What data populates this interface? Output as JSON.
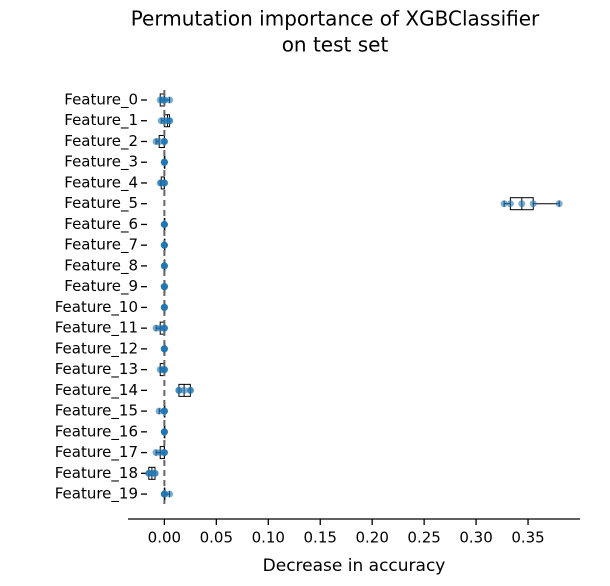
{
  "chart_data": {
    "type": "boxplot",
    "orientation": "horizontal",
    "title": [
      "Permutation importance of XGBClassifier",
      "on test set"
    ],
    "xlabel": "Decrease in accuracy",
    "categories": [
      "Feature_0",
      "Feature_1",
      "Feature_2",
      "Feature_3",
      "Feature_4",
      "Feature_5",
      "Feature_6",
      "Feature_7",
      "Feature_8",
      "Feature_9",
      "Feature_10",
      "Feature_11",
      "Feature_12",
      "Feature_13",
      "Feature_14",
      "Feature_15",
      "Feature_16",
      "Feature_17",
      "Feature_18",
      "Feature_19"
    ],
    "boxes": [
      {
        "whislo": -0.004,
        "q1": -0.004,
        "median": 0,
        "q3": 0,
        "whishi": 0.005
      },
      {
        "whislo": -0.003,
        "q1": 0,
        "median": 0.003,
        "q3": 0.005,
        "whishi": 0.005
      },
      {
        "whislo": -0.008,
        "q1": -0.005,
        "median": 0,
        "q3": 0,
        "whishi": 0
      },
      {
        "whislo": 0,
        "q1": 0,
        "median": 0,
        "q3": 0,
        "whishi": 0
      },
      {
        "whislo": -0.004,
        "q1": -0.003,
        "median": 0,
        "q3": 0,
        "whishi": 0
      },
      {
        "whislo": 0.327,
        "q1": 0.333,
        "median": 0.344,
        "q3": 0.355,
        "whishi": 0.38
      },
      {
        "whislo": 0,
        "q1": 0,
        "median": 0,
        "q3": 0,
        "whishi": 0
      },
      {
        "whislo": 0,
        "q1": 0,
        "median": 0,
        "q3": 0,
        "whishi": 0
      },
      {
        "whislo": 0,
        "q1": 0,
        "median": 0,
        "q3": 0,
        "whishi": 0
      },
      {
        "whislo": 0,
        "q1": 0,
        "median": 0,
        "q3": 0,
        "whishi": 0
      },
      {
        "whislo": 0,
        "q1": 0,
        "median": 0,
        "q3": 0,
        "whishi": 0
      },
      {
        "whislo": -0.008,
        "q1": -0.004,
        "median": 0,
        "q3": 0,
        "whishi": 0
      },
      {
        "whislo": 0,
        "q1": 0,
        "median": 0,
        "q3": 0,
        "whishi": 0
      },
      {
        "whislo": -0.004,
        "q1": -0.004,
        "median": 0,
        "q3": 0,
        "whishi": 0
      },
      {
        "whislo": 0.014,
        "q1": 0.014,
        "median": 0.019,
        "q3": 0.025,
        "whishi": 0.025
      },
      {
        "whislo": -0.005,
        "q1": 0,
        "median": 0,
        "q3": 0,
        "whishi": 0
      },
      {
        "whislo": 0,
        "q1": 0,
        "median": 0,
        "q3": 0,
        "whishi": 0
      },
      {
        "whislo": -0.008,
        "q1": -0.004,
        "median": 0,
        "q3": 0,
        "whishi": 0
      },
      {
        "whislo": -0.015,
        "q1": -0.015,
        "median": -0.012,
        "q3": -0.009,
        "whishi": -0.009
      },
      {
        "whislo": 0,
        "q1": 0,
        "median": 0,
        "q3": 0,
        "whishi": 0.005
      }
    ],
    "points": [
      [
        -0.004,
        -0.002,
        0,
        0,
        0.005
      ],
      [
        -0.003,
        0,
        0.003,
        0.005,
        0.005
      ],
      [
        -0.008,
        -0.005,
        0,
        0,
        0
      ],
      [
        0,
        0,
        0,
        0,
        0
      ],
      [
        -0.004,
        -0.003,
        0,
        0,
        0
      ],
      [
        0.327,
        0.333,
        0.344,
        0.355,
        0.38
      ],
      [
        0,
        0,
        0,
        0,
        0
      ],
      [
        0,
        0,
        0,
        0,
        0
      ],
      [
        0,
        0,
        0,
        0,
        0
      ],
      [
        0,
        0,
        0,
        0,
        0
      ],
      [
        0,
        0,
        0,
        0,
        0
      ],
      [
        -0.008,
        -0.004,
        0,
        0,
        0
      ],
      [
        0,
        0,
        0,
        0,
        0
      ],
      [
        -0.004,
        -0.002,
        0,
        0,
        0
      ],
      [
        0.014,
        0.014,
        0.019,
        0.025,
        0.025
      ],
      [
        -0.005,
        0,
        0,
        0,
        0
      ],
      [
        0,
        0,
        0,
        0,
        0
      ],
      [
        -0.008,
        -0.004,
        0,
        0,
        0
      ],
      [
        -0.015,
        -0.015,
        -0.012,
        -0.009,
        -0.009
      ],
      [
        0,
        0,
        0,
        0,
        0.005
      ]
    ],
    "point_color": "#1f77b4",
    "reference_line": 0,
    "xlim": [
      -0.035,
      0.4
    ],
    "xticks": [
      {
        "value": 0,
        "label": "0.00"
      },
      0.05,
      {
        "value": 0.1,
        "label": "0.10"
      },
      0.15,
      {
        "value": 0.2,
        "label": "0.20"
      },
      0.25,
      {
        "value": 0.3,
        "label": "0.30"
      },
      0.35
    ]
  }
}
